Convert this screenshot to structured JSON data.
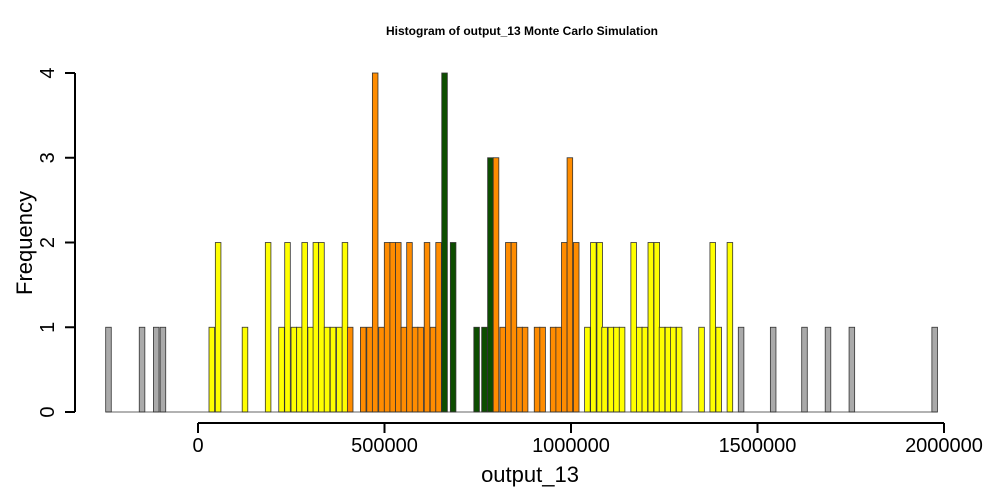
{
  "chart_data": {
    "type": "bar",
    "title": "Histogram of  output_13  Monte Carlo Simulation",
    "xlabel": "output_13",
    "ylabel": "Frequency",
    "xlim": [
      -255000,
      2010000
    ],
    "ylim": [
      0,
      4
    ],
    "x_ticks": [
      0,
      500000,
      1000000,
      1500000,
      2000000
    ],
    "y_ticks": [
      0,
      1,
      2,
      3,
      4
    ],
    "bin_width": 15000,
    "colors": {
      "outer": "#aaaaaa",
      "mid": "#ffff00",
      "inner": "#ff8c00",
      "center": "#0d4d00"
    },
    "bars": [
      {
        "x": -240000,
        "value": 1,
        "group": "outer"
      },
      {
        "x": -150000,
        "value": 1,
        "group": "outer"
      },
      {
        "x": -112000,
        "value": 1,
        "group": "outer"
      },
      {
        "x": -94000,
        "value": 1,
        "group": "outer"
      },
      {
        "x": 37000,
        "value": 1,
        "group": "mid"
      },
      {
        "x": 54000,
        "value": 2,
        "group": "mid"
      },
      {
        "x": 126000,
        "value": 1,
        "group": "mid"
      },
      {
        "x": 188000,
        "value": 2,
        "group": "mid"
      },
      {
        "x": 224000,
        "value": 1,
        "group": "mid"
      },
      {
        "x": 240000,
        "value": 2,
        "group": "mid"
      },
      {
        "x": 257000,
        "value": 1,
        "group": "mid"
      },
      {
        "x": 272000,
        "value": 1,
        "group": "mid"
      },
      {
        "x": 286000,
        "value": 2,
        "group": "mid"
      },
      {
        "x": 302000,
        "value": 1,
        "group": "mid"
      },
      {
        "x": 316000,
        "value": 2,
        "group": "mid"
      },
      {
        "x": 331000,
        "value": 2,
        "group": "mid"
      },
      {
        "x": 346000,
        "value": 1,
        "group": "mid"
      },
      {
        "x": 362000,
        "value": 1,
        "group": "mid"
      },
      {
        "x": 379000,
        "value": 1,
        "group": "mid"
      },
      {
        "x": 394000,
        "value": 2,
        "group": "mid"
      },
      {
        "x": 408000,
        "value": 1,
        "group": "inner"
      },
      {
        "x": 443000,
        "value": 1,
        "group": "inner"
      },
      {
        "x": 460000,
        "value": 1,
        "group": "inner"
      },
      {
        "x": 475000,
        "value": 4,
        "group": "inner"
      },
      {
        "x": 492000,
        "value": 1,
        "group": "inner"
      },
      {
        "x": 507000,
        "value": 2,
        "group": "inner"
      },
      {
        "x": 522000,
        "value": 2,
        "group": "inner"
      },
      {
        "x": 537000,
        "value": 2,
        "group": "inner"
      },
      {
        "x": 552000,
        "value": 1,
        "group": "inner"
      },
      {
        "x": 567000,
        "value": 2,
        "group": "inner"
      },
      {
        "x": 582000,
        "value": 1,
        "group": "inner"
      },
      {
        "x": 597000,
        "value": 1,
        "group": "inner"
      },
      {
        "x": 614000,
        "value": 2,
        "group": "inner"
      },
      {
        "x": 630000,
        "value": 1,
        "group": "inner"
      },
      {
        "x": 645000,
        "value": 2,
        "group": "inner"
      },
      {
        "x": 661000,
        "value": 4,
        "group": "center"
      },
      {
        "x": 684000,
        "value": 2,
        "group": "center"
      },
      {
        "x": 747000,
        "value": 1,
        "group": "center"
      },
      {
        "x": 768000,
        "value": 1,
        "group": "center"
      },
      {
        "x": 784000,
        "value": 3,
        "group": "center"
      },
      {
        "x": 799000,
        "value": 3,
        "group": "inner"
      },
      {
        "x": 817000,
        "value": 1,
        "group": "inner"
      },
      {
        "x": 832000,
        "value": 2,
        "group": "inner"
      },
      {
        "x": 847000,
        "value": 2,
        "group": "inner"
      },
      {
        "x": 862000,
        "value": 1,
        "group": "inner"
      },
      {
        "x": 877000,
        "value": 1,
        "group": "inner"
      },
      {
        "x": 909000,
        "value": 1,
        "group": "inner"
      },
      {
        "x": 924000,
        "value": 1,
        "group": "inner"
      },
      {
        "x": 952000,
        "value": 1,
        "group": "inner"
      },
      {
        "x": 967000,
        "value": 1,
        "group": "inner"
      },
      {
        "x": 982000,
        "value": 2,
        "group": "inner"
      },
      {
        "x": 997000,
        "value": 3,
        "group": "inner"
      },
      {
        "x": 1014000,
        "value": 2,
        "group": "inner"
      },
      {
        "x": 1044000,
        "value": 1,
        "group": "mid"
      },
      {
        "x": 1060000,
        "value": 2,
        "group": "mid"
      },
      {
        "x": 1077000,
        "value": 2,
        "group": "mid"
      },
      {
        "x": 1090000,
        "value": 1,
        "group": "mid"
      },
      {
        "x": 1107000,
        "value": 1,
        "group": "mid"
      },
      {
        "x": 1122000,
        "value": 1,
        "group": "mid"
      },
      {
        "x": 1137000,
        "value": 1,
        "group": "mid"
      },
      {
        "x": 1168000,
        "value": 2,
        "group": "mid"
      },
      {
        "x": 1183000,
        "value": 1,
        "group": "mid"
      },
      {
        "x": 1198000,
        "value": 1,
        "group": "mid"
      },
      {
        "x": 1214000,
        "value": 2,
        "group": "mid"
      },
      {
        "x": 1230000,
        "value": 2,
        "group": "mid"
      },
      {
        "x": 1244000,
        "value": 1,
        "group": "mid"
      },
      {
        "x": 1260000,
        "value": 1,
        "group": "mid"
      },
      {
        "x": 1274000,
        "value": 1,
        "group": "mid"
      },
      {
        "x": 1290000,
        "value": 1,
        "group": "mid"
      },
      {
        "x": 1350000,
        "value": 1,
        "group": "mid"
      },
      {
        "x": 1380000,
        "value": 2,
        "group": "mid"
      },
      {
        "x": 1396000,
        "value": 1,
        "group": "mid"
      },
      {
        "x": 1426000,
        "value": 2,
        "group": "mid"
      },
      {
        "x": 1456000,
        "value": 1,
        "group": "outer"
      },
      {
        "x": 1542000,
        "value": 1,
        "group": "outer"
      },
      {
        "x": 1626000,
        "value": 1,
        "group": "outer"
      },
      {
        "x": 1689000,
        "value": 1,
        "group": "outer"
      },
      {
        "x": 1753000,
        "value": 1,
        "group": "outer"
      },
      {
        "x": 1975000,
        "value": 1,
        "group": "outer"
      }
    ]
  }
}
